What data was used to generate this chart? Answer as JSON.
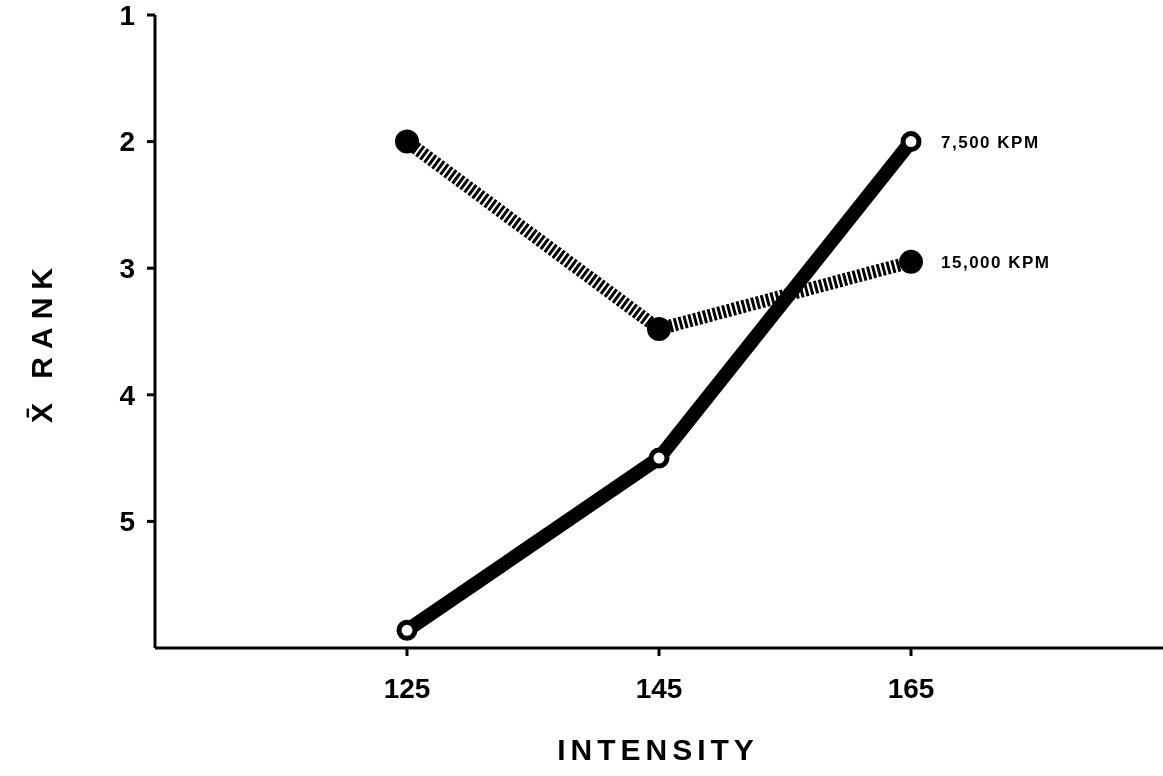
{
  "chart_data": {
    "type": "line",
    "xlabel": "INTENSITY",
    "ylabel": "X̄ RANK",
    "x": [
      125,
      145,
      165
    ],
    "xlim": [
      105,
      185
    ],
    "xticks": [
      125,
      145,
      165
    ],
    "ylim": [
      6,
      1
    ],
    "yticks": [
      1,
      2,
      3,
      4,
      5
    ],
    "grid": false,
    "marker": "circle",
    "series": [
      {
        "name": "7,500 KPM",
        "color": "#000000",
        "line_style": "solid",
        "values": [
          5.86,
          4.5,
          2.0
        ]
      },
      {
        "name": "15,000 KPM",
        "color": "#000000",
        "line_style": "dotted",
        "values": [
          2.0,
          3.48,
          2.95
        ]
      }
    ]
  }
}
